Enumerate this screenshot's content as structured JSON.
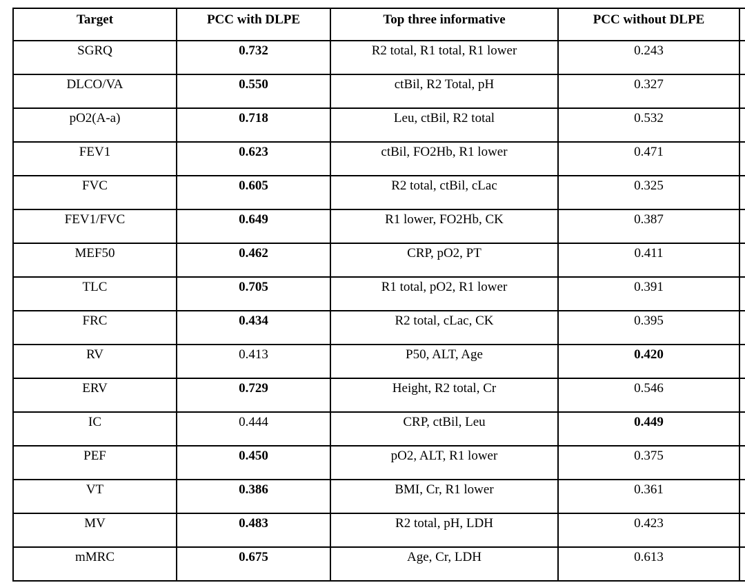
{
  "table": {
    "headers": {
      "target": "Target",
      "pcc_with": "PCC with DLPE",
      "top_three": "Top three informative",
      "pcc_without": "PCC without DLPE",
      "extra": ""
    },
    "rows": [
      {
        "target": "SGRQ",
        "pcc_with": "0.732",
        "pcc_with_bold": true,
        "top_three": "R2 total, R1 total, R1 lower",
        "pcc_without": "0.243",
        "pcc_without_bold": false
      },
      {
        "target": "DLCO/VA",
        "pcc_with": "0.550",
        "pcc_with_bold": true,
        "top_three": "ctBil, R2 Total, pH",
        "pcc_without": "0.327",
        "pcc_without_bold": false
      },
      {
        "target": "pO2(A-a)",
        "pcc_with": "0.718",
        "pcc_with_bold": true,
        "top_three": "Leu, ctBil, R2 total",
        "pcc_without": "0.532",
        "pcc_without_bold": false
      },
      {
        "target": "FEV1",
        "pcc_with": "0.623",
        "pcc_with_bold": true,
        "top_three": "ctBil, FO2Hb, R1 lower",
        "pcc_without": "0.471",
        "pcc_without_bold": false
      },
      {
        "target": "FVC",
        "pcc_with": "0.605",
        "pcc_with_bold": true,
        "top_three": "R2 total, ctBil, cLac",
        "pcc_without": "0.325",
        "pcc_without_bold": false
      },
      {
        "target": "FEV1/FVC",
        "pcc_with": "0.649",
        "pcc_with_bold": true,
        "top_three": "R1 lower, FO2Hb, CK",
        "pcc_without": "0.387",
        "pcc_without_bold": false
      },
      {
        "target": "MEF50",
        "pcc_with": "0.462",
        "pcc_with_bold": true,
        "top_three": "CRP, pO2, PT",
        "pcc_without": "0.411",
        "pcc_without_bold": false
      },
      {
        "target": "TLC",
        "pcc_with": "0.705",
        "pcc_with_bold": true,
        "top_three": "R1 total, pO2, R1 lower",
        "pcc_without": "0.391",
        "pcc_without_bold": false
      },
      {
        "target": "FRC",
        "pcc_with": "0.434",
        "pcc_with_bold": true,
        "top_three": "R2 total, cLac, CK",
        "pcc_without": "0.395",
        "pcc_without_bold": false
      },
      {
        "target": "RV",
        "pcc_with": "0.413",
        "pcc_with_bold": false,
        "top_three": "P50, ALT, Age",
        "pcc_without": "0.420",
        "pcc_without_bold": true
      },
      {
        "target": "ERV",
        "pcc_with": "0.729",
        "pcc_with_bold": true,
        "top_three": "Height, R2 total, Cr",
        "pcc_without": "0.546",
        "pcc_without_bold": false
      },
      {
        "target": "IC",
        "pcc_with": "0.444",
        "pcc_with_bold": false,
        "top_three": "CRP, ctBil, Leu",
        "pcc_without": "0.449",
        "pcc_without_bold": true
      },
      {
        "target": "PEF",
        "pcc_with": "0.450",
        "pcc_with_bold": true,
        "top_three": "pO2, ALT, R1 lower",
        "pcc_without": "0.375",
        "pcc_without_bold": false
      },
      {
        "target": "VT",
        "pcc_with": "0.386",
        "pcc_with_bold": true,
        "top_three": "BMI, Cr, R1 lower",
        "pcc_without": "0.361",
        "pcc_without_bold": false
      },
      {
        "target": "MV",
        "pcc_with": "0.483",
        "pcc_with_bold": true,
        "top_three": "R2 total, pH, LDH",
        "pcc_without": "0.423",
        "pcc_without_bold": false
      },
      {
        "target": "mMRC",
        "pcc_with": "0.675",
        "pcc_with_bold": true,
        "top_three": "Age, Cr, LDH",
        "pcc_without": "0.613",
        "pcc_without_bold": false
      }
    ]
  }
}
